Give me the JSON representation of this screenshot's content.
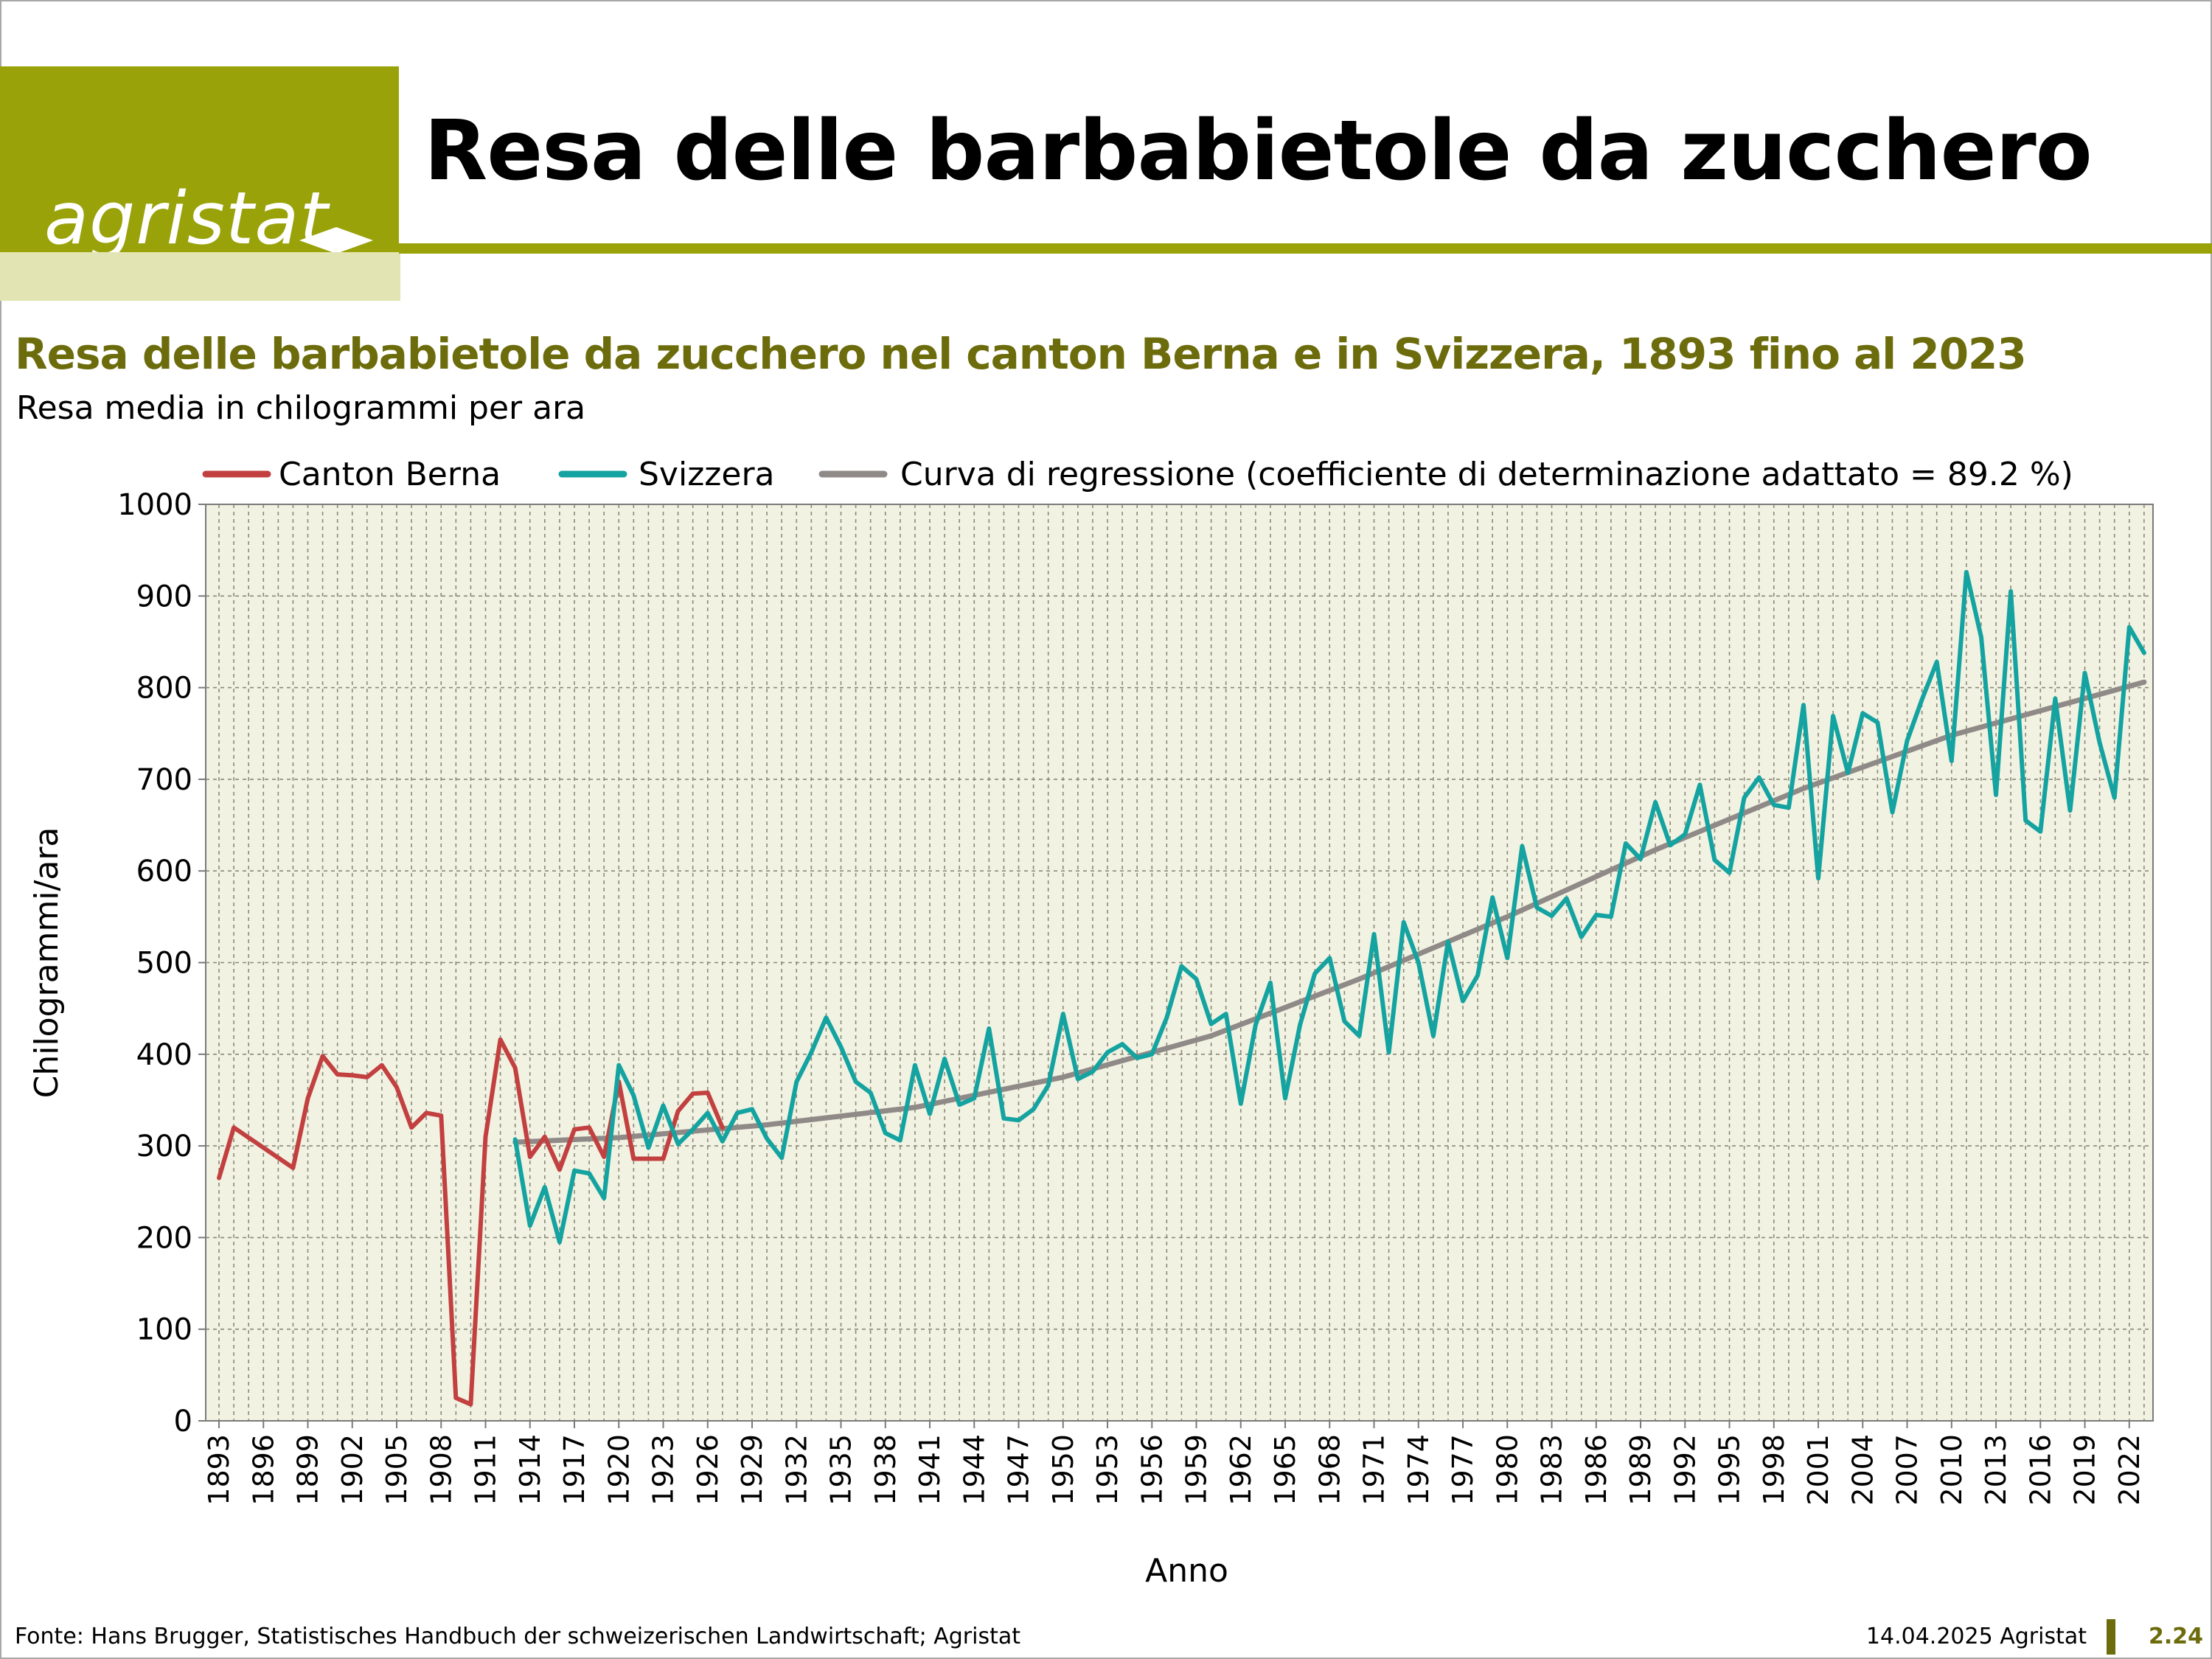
{
  "logo": {
    "text": "agristat"
  },
  "header": {
    "title": "Resa delle barbabietole da zucchero"
  },
  "colors": {
    "accent": "#9aa20a",
    "accent_light": "#e2e5b3",
    "title_olive": "#6c6c0c",
    "plot_background": "#f1f2e2",
    "canton_berna": "#c24040",
    "svizzera": "#14a3a0",
    "regression": "#8f8a87"
  },
  "footer": {
    "source": "Fonte: Hans Brugger, Statistisches Handbuch der schweizerischen Landwirtschaft; Agristat",
    "date": "14.04.2025 Agristat",
    "page": "2.24"
  },
  "chart_data": {
    "type": "line",
    "title": "Resa delle barbabietole da zucchero nel canton Berna e in Svizzera, 1893 fino al 2023",
    "subtitle": "Resa media in chilogrammi per ara",
    "xlabel": "Anno",
    "ylabel": "Chilogrammi/ara",
    "xlim": [
      1893,
      2023
    ],
    "ylim": [
      0,
      1000
    ],
    "y_ticks": [
      0,
      100,
      200,
      300,
      400,
      500,
      600,
      700,
      800,
      900,
      1000
    ],
    "x_ticks": [
      1893,
      1896,
      1899,
      1902,
      1905,
      1908,
      1911,
      1914,
      1917,
      1920,
      1923,
      1926,
      1929,
      1932,
      1935,
      1938,
      1941,
      1944,
      1947,
      1950,
      1953,
      1956,
      1959,
      1962,
      1965,
      1968,
      1971,
      1974,
      1977,
      1980,
      1983,
      1986,
      1989,
      1992,
      1995,
      1998,
      2001,
      2004,
      2007,
      2010,
      2013,
      2016,
      2019,
      2022
    ],
    "grid": true,
    "legend_position": "top",
    "series": [
      {
        "name": "Canton Berna",
        "color": "#c24040",
        "x": [
          1893,
          1894,
          1898,
          1899,
          1900,
          1901,
          1902,
          1903,
          1904,
          1905,
          1906,
          1907,
          1908,
          1909,
          1910,
          1911,
          1912,
          1913,
          1914,
          1915,
          1916,
          1917,
          1918,
          1919,
          1920,
          1921,
          1922,
          1923,
          1924,
          1925,
          1926,
          1927
        ],
        "y": [
          265,
          320,
          276,
          352,
          398,
          378,
          377,
          375,
          388,
          364,
          320,
          336,
          333,
          25,
          18,
          310,
          416,
          385,
          288,
          310,
          274,
          318,
          320,
          288,
          370,
          286,
          286,
          286,
          338,
          357,
          358,
          320
        ]
      },
      {
        "name": "Svizzera",
        "color": "#14a3a0",
        "x": [
          1913,
          1914,
          1915,
          1916,
          1917,
          1918,
          1919,
          1920,
          1921,
          1922,
          1923,
          1924,
          1925,
          1926,
          1927,
          1928,
          1929,
          1930,
          1931,
          1932,
          1933,
          1934,
          1935,
          1936,
          1937,
          1938,
          1939,
          1940,
          1941,
          1942,
          1943,
          1944,
          1945,
          1946,
          1947,
          1948,
          1949,
          1950,
          1951,
          1952,
          1953,
          1954,
          1955,
          1956,
          1957,
          1958,
          1959,
          1960,
          1961,
          1962,
          1963,
          1964,
          1965,
          1966,
          1967,
          1968,
          1969,
          1970,
          1971,
          1972,
          1973,
          1974,
          1975,
          1976,
          1977,
          1978,
          1979,
          1980,
          1981,
          1982,
          1983,
          1984,
          1985,
          1986,
          1987,
          1988,
          1989,
          1990,
          1991,
          1992,
          1993,
          1994,
          1995,
          1996,
          1997,
          1998,
          1999,
          2000,
          2001,
          2002,
          2003,
          2004,
          2005,
          2006,
          2007,
          2008,
          2009,
          2010,
          2011,
          2012,
          2013,
          2014,
          2015,
          2016,
          2017,
          2018,
          2019,
          2020,
          2021,
          2022,
          2023
        ],
        "y": [
          307,
          213,
          255,
          195,
          273,
          270,
          243,
          388,
          355,
          298,
          344,
          302,
          318,
          336,
          305,
          336,
          340,
          308,
          287,
          370,
          402,
          440,
          408,
          370,
          358,
          314,
          306,
          388,
          335,
          395,
          345,
          352,
          428,
          330,
          328,
          340,
          366,
          444,
          373,
          381,
          402,
          411,
          396,
          400,
          440,
          496,
          482,
          433,
          444,
          346,
          432,
          478,
          352,
          432,
          488,
          505,
          436,
          420,
          531,
          402,
          544,
          500,
          420,
          523,
          458,
          486,
          571,
          505,
          627,
          560,
          551,
          570,
          528,
          552,
          550,
          630,
          613,
          675,
          628,
          640,
          694,
          612,
          598,
          680,
          702,
          672,
          669,
          781,
          592,
          769,
          707,
          772,
          762,
          664,
          742,
          787,
          828,
          720,
          926,
          855,
          683,
          905,
          655,
          643,
          788,
          666,
          816,
          740,
          680,
          866,
          838
        ]
      },
      {
        "name": "Curva di regressione (coefficiente di determinazione adattato = 89.2 %)",
        "color": "#8f8a87",
        "x": [
          1913,
          1920,
          1930,
          1940,
          1950,
          1960,
          1970,
          1980,
          1990,
          2000,
          2010,
          2023
        ],
        "y": [
          304,
          309,
          323,
          342,
          375,
          420,
          482,
          550,
          623,
          690,
          748,
          806
        ]
      }
    ]
  }
}
